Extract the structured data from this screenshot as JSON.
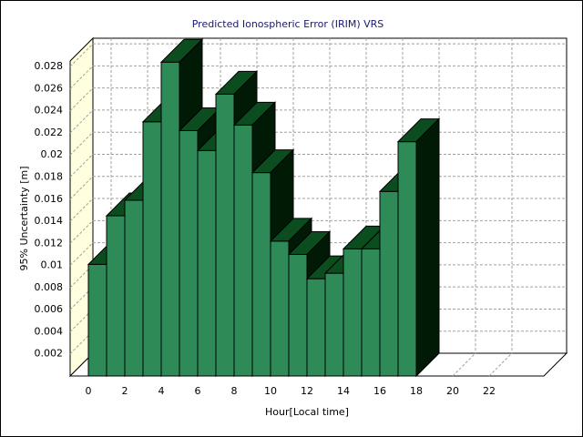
{
  "chart_data": {
    "type": "bar",
    "title": "Predicted Ionospheric Error (IRIM) VRS",
    "x_label": "Hour[Local time]",
    "y_label": "95% Uncertainty [m]",
    "x": [
      0,
      1,
      2,
      3,
      4,
      5,
      6,
      7,
      8,
      9,
      10,
      11,
      12,
      13,
      14,
      15,
      16,
      17
    ],
    "values": [
      0.0101,
      0.0145,
      0.0159,
      0.023,
      0.0284,
      0.0222,
      0.0204,
      0.0255,
      0.0227,
      0.0184,
      0.0122,
      0.011,
      0.0088,
      0.0093,
      0.0115,
      0.0115,
      0.0167,
      0.0212
    ],
    "color": "#2e8b57",
    "xlim": [
      -1,
      25
    ],
    "xticks": [
      0,
      2,
      4,
      6,
      8,
      10,
      12,
      14,
      16,
      18,
      20,
      22
    ],
    "ylim": [
      0,
      0.0285
    ],
    "yticks": [
      0.002,
      0.004,
      0.006,
      0.008,
      0.01,
      0.012,
      0.014,
      0.016,
      0.018,
      0.02,
      0.022,
      0.024,
      0.026,
      0.028
    ],
    "grid": true
  }
}
